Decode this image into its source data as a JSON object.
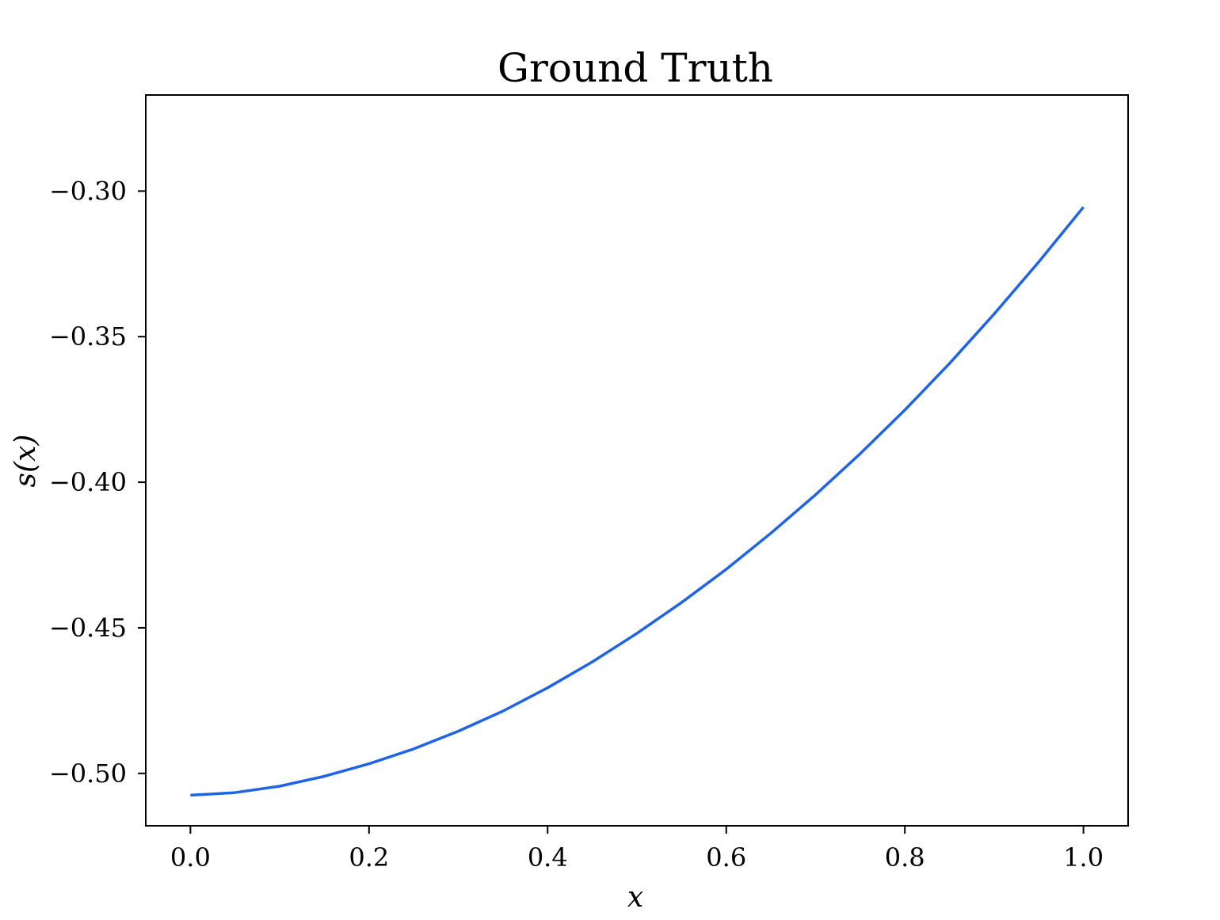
{
  "chart_data": {
    "type": "line",
    "title": "Ground Truth",
    "xlabel": "x",
    "ylabel": "s(x)",
    "xlim": [
      -0.05,
      1.05
    ],
    "ylim": [
      -0.518,
      -0.267
    ],
    "x_ticks": [
      0.0,
      0.2,
      0.4,
      0.6,
      0.8,
      1.0
    ],
    "x_tick_labels": [
      "0.0",
      "0.2",
      "0.4",
      "0.6",
      "0.8",
      "1.0"
    ],
    "y_ticks": [
      -0.5,
      -0.45,
      -0.4,
      -0.35,
      -0.3
    ],
    "y_tick_labels": [
      "−0.50",
      "−0.45",
      "−0.40",
      "−0.35",
      "−0.30"
    ],
    "grid": false,
    "series": [
      {
        "color": "#1f63e6",
        "x": [
          0.0,
          0.05,
          0.1,
          0.15,
          0.2,
          0.25,
          0.3,
          0.35,
          0.4,
          0.45,
          0.5,
          0.55,
          0.6,
          0.65,
          0.7,
          0.75,
          0.8,
          0.85,
          0.9,
          0.95,
          1.0
        ],
        "y": [
          -0.5075,
          -0.5066,
          -0.5044,
          -0.501,
          -0.4967,
          -0.4916,
          -0.4855,
          -0.4786,
          -0.4706,
          -0.4617,
          -0.4519,
          -0.4413,
          -0.4299,
          -0.4175,
          -0.4043,
          -0.3902,
          -0.3752,
          -0.3592,
          -0.3422,
          -0.3243,
          -0.3055
        ]
      }
    ]
  }
}
